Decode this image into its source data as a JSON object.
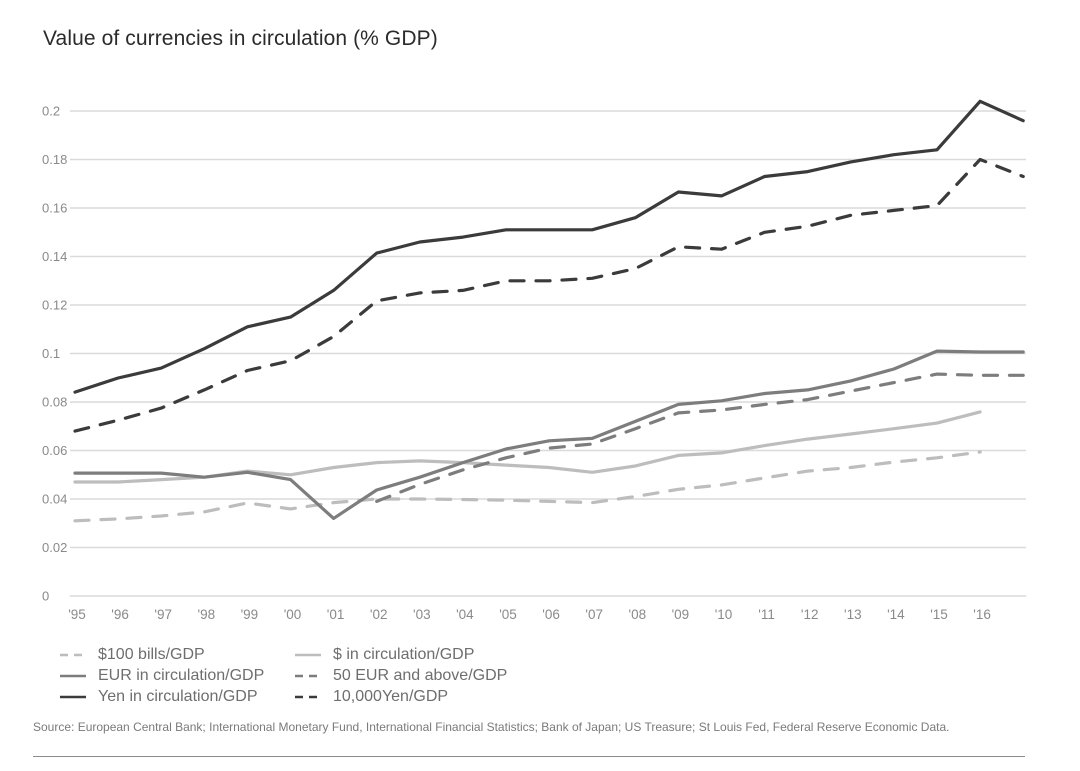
{
  "chart_data": {
    "type": "line",
    "title": "Value of currencies in circulation (% GDP)",
    "xlabel": "",
    "ylabel": "",
    "ylim": [
      0,
      0.2
    ],
    "yticks": [
      "0",
      "0.02",
      "0.04",
      "0.06",
      "0.08",
      "0.1",
      "0.12",
      "0.14",
      "0.16",
      "0.18",
      "0.2"
    ],
    "ytick_values": [
      0,
      0.02,
      0.04,
      0.06,
      0.08,
      0.1,
      0.12,
      0.14,
      0.16,
      0.18,
      0.2
    ],
    "x": [
      1995,
      1996,
      1997,
      1998,
      1999,
      2000,
      2001,
      2002,
      2003,
      2004,
      2005,
      2006,
      2007,
      2008,
      2009,
      2010,
      2011,
      2012,
      2013,
      2014,
      2015,
      2016,
      2017
    ],
    "xticks": [
      "'95",
      "'96",
      "'97",
      "'98",
      "'99",
      "'00",
      "'01",
      "'02",
      "'03",
      "'04",
      "'05",
      "'06",
      "'07",
      "'08",
      "'09",
      "'10",
      "'11",
      "'12",
      "'13",
      "'14",
      "'15",
      "'16"
    ],
    "grid": true,
    "legend_position": "bottom-left",
    "series": [
      {
        "name": "$100 bills/GDP",
        "color": "#bdbdbd",
        "dashed": true,
        "values": [
          0.031,
          0.0318,
          0.033,
          0.0347,
          0.0384,
          0.0359,
          0.0385,
          0.04,
          0.04,
          0.0398,
          0.0395,
          0.039,
          0.0385,
          0.041,
          0.044,
          0.0458,
          0.0487,
          0.0515,
          0.053,
          0.0552,
          0.057,
          0.0594,
          null
        ]
      },
      {
        "name": "$ in circulation/GDP",
        "color": "#bdbdbd",
        "dashed": false,
        "values": [
          0.047,
          0.047,
          0.048,
          0.049,
          0.0515,
          0.05,
          0.053,
          0.055,
          0.0557,
          0.055,
          0.054,
          0.053,
          0.051,
          0.0536,
          0.058,
          0.059,
          0.062,
          0.0647,
          0.0668,
          0.069,
          0.0713,
          0.0759,
          null
        ]
      },
      {
        "name": "EUR in circulation/GDP",
        "color": "#7d7d7d",
        "dashed": false,
        "values": [
          0.0507,
          0.0507,
          0.0507,
          0.049,
          0.051,
          0.048,
          0.032,
          0.0437,
          0.049,
          0.055,
          0.0606,
          0.064,
          0.065,
          0.072,
          0.079,
          0.0805,
          0.0835,
          0.085,
          0.0887,
          0.0936,
          0.101,
          0.1006,
          0.1006
        ]
      },
      {
        "name": "50 EUR and above/GDP",
        "color": "#7d7d7d",
        "dashed": true,
        "values": [
          null,
          null,
          null,
          null,
          null,
          null,
          null,
          0.039,
          0.046,
          0.052,
          0.057,
          0.061,
          0.0627,
          0.069,
          0.0755,
          0.0767,
          0.079,
          0.081,
          0.0845,
          0.088,
          0.0915,
          0.091,
          0.091
        ]
      },
      {
        "name": "Yen in circulation/GDP",
        "color": "#3b3b3b",
        "dashed": false,
        "values": [
          0.0841,
          0.0899,
          0.094,
          0.102,
          0.111,
          0.115,
          0.126,
          0.1414,
          0.146,
          0.148,
          0.151,
          0.151,
          0.151,
          0.156,
          0.1666,
          0.165,
          0.173,
          0.175,
          0.179,
          0.182,
          0.184,
          0.204,
          0.196
        ]
      },
      {
        "name": "10,000Yen/GDP",
        "color": "#3b3b3b",
        "dashed": true,
        "values": [
          0.068,
          0.0725,
          0.0775,
          0.085,
          0.093,
          0.097,
          0.107,
          0.1217,
          0.125,
          0.126,
          0.13,
          0.13,
          0.131,
          0.135,
          0.144,
          0.143,
          0.15,
          0.1525,
          0.157,
          0.159,
          0.161,
          0.18,
          0.173
        ]
      }
    ]
  },
  "legend": {
    "items": [
      {
        "label": "$100 bills/GDP",
        "series_index": 0
      },
      {
        "label": "$ in circulation/GDP",
        "series_index": 1
      },
      {
        "label": "EUR in circulation/GDP",
        "series_index": 2
      },
      {
        "label": "50 EUR and above/GDP",
        "series_index": 3
      },
      {
        "label": "Yen in circulation/GDP",
        "series_index": 4
      },
      {
        "label": "10,000Yen/GDP",
        "series_index": 5
      }
    ]
  },
  "source": {
    "text": "Source: European Central Bank; International Monetary Fund, International Financial Statistics; Bank of Japan; US Treasure; St Louis Fed, Federal Reserve Economic Data."
  }
}
